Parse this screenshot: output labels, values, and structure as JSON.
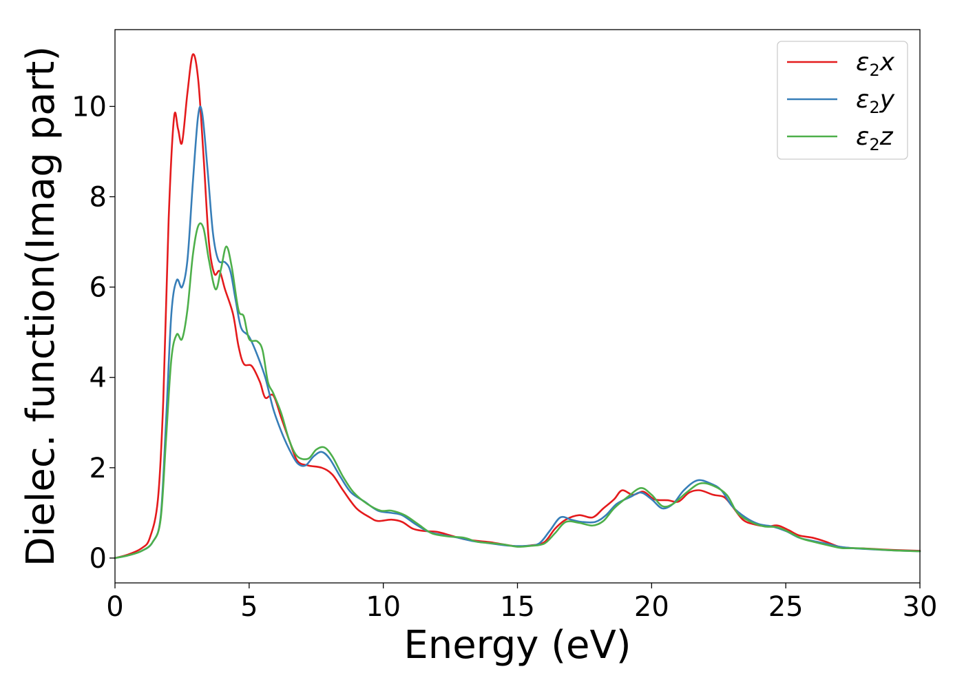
{
  "chart_data": {
    "type": "line",
    "xlabel": "Energy (eV)",
    "ylabel": "Dielec. function(Imag part)",
    "xlim": [
      0,
      30
    ],
    "ylim": [
      -0.55,
      11.7
    ],
    "xticks": [
      "0",
      "5",
      "10",
      "15",
      "20",
      "25",
      "30"
    ],
    "yticks": [
      "0",
      "2",
      "4",
      "6",
      "8",
      "10"
    ],
    "grid": false,
    "legend_position": "top-right",
    "series": [
      {
        "name": "ε2x",
        "symbol": "ε",
        "subscript": "2",
        "axis": "x",
        "color": "#e41a1c",
        "points": [
          [
            0,
            0
          ],
          [
            0.5,
            0.08
          ],
          [
            1.0,
            0.22
          ],
          [
            1.3,
            0.45
          ],
          [
            1.6,
            1.3
          ],
          [
            1.8,
            3.5
          ],
          [
            2.0,
            7.5
          ],
          [
            2.2,
            9.75
          ],
          [
            2.35,
            9.5
          ],
          [
            2.5,
            9.2
          ],
          [
            2.7,
            10.3
          ],
          [
            2.9,
            11.15
          ],
          [
            3.1,
            10.6
          ],
          [
            3.3,
            8.9
          ],
          [
            3.5,
            7.0
          ],
          [
            3.7,
            6.3
          ],
          [
            3.9,
            6.35
          ],
          [
            4.1,
            5.95
          ],
          [
            4.4,
            5.4
          ],
          [
            4.6,
            4.7
          ],
          [
            4.8,
            4.3
          ],
          [
            5.1,
            4.25
          ],
          [
            5.4,
            3.9
          ],
          [
            5.6,
            3.55
          ],
          [
            5.9,
            3.6
          ],
          [
            6.2,
            3.1
          ],
          [
            6.5,
            2.6
          ],
          [
            6.8,
            2.15
          ],
          [
            7.2,
            2.05
          ],
          [
            7.7,
            2.0
          ],
          [
            8.1,
            1.85
          ],
          [
            8.5,
            1.5
          ],
          [
            9.0,
            1.1
          ],
          [
            9.5,
            0.9
          ],
          [
            9.8,
            0.82
          ],
          [
            10.3,
            0.85
          ],
          [
            10.7,
            0.8
          ],
          [
            11.1,
            0.65
          ],
          [
            11.5,
            0.6
          ],
          [
            12.0,
            0.58
          ],
          [
            12.5,
            0.5
          ],
          [
            13.0,
            0.42
          ],
          [
            13.5,
            0.38
          ],
          [
            14.0,
            0.35
          ],
          [
            14.5,
            0.3
          ],
          [
            15.0,
            0.26
          ],
          [
            15.5,
            0.28
          ],
          [
            16.0,
            0.35
          ],
          [
            16.4,
            0.65
          ],
          [
            16.8,
            0.85
          ],
          [
            17.3,
            0.95
          ],
          [
            17.8,
            0.9
          ],
          [
            18.2,
            1.1
          ],
          [
            18.6,
            1.3
          ],
          [
            18.9,
            1.5
          ],
          [
            19.3,
            1.4
          ],
          [
            19.7,
            1.47
          ],
          [
            20.1,
            1.3
          ],
          [
            20.6,
            1.28
          ],
          [
            21.0,
            1.25
          ],
          [
            21.4,
            1.45
          ],
          [
            21.8,
            1.5
          ],
          [
            22.3,
            1.4
          ],
          [
            22.7,
            1.35
          ],
          [
            23.0,
            1.15
          ],
          [
            23.4,
            0.85
          ],
          [
            23.8,
            0.75
          ],
          [
            24.3,
            0.7
          ],
          [
            24.7,
            0.72
          ],
          [
            25.1,
            0.62
          ],
          [
            25.5,
            0.5
          ],
          [
            26.0,
            0.45
          ],
          [
            26.5,
            0.36
          ],
          [
            27.0,
            0.25
          ],
          [
            27.5,
            0.22
          ],
          [
            28.0,
            0.21
          ],
          [
            29.0,
            0.18
          ],
          [
            30.0,
            0.16
          ]
        ]
      },
      {
        "name": "ε2y",
        "symbol": "ε",
        "subscript": "2",
        "axis": "y",
        "color": "#377eb8",
        "points": [
          [
            0,
            0
          ],
          [
            0.5,
            0.06
          ],
          [
            1.0,
            0.16
          ],
          [
            1.4,
            0.35
          ],
          [
            1.7,
            0.9
          ],
          [
            1.9,
            3.0
          ],
          [
            2.1,
            5.4
          ],
          [
            2.3,
            6.15
          ],
          [
            2.5,
            6.0
          ],
          [
            2.7,
            6.6
          ],
          [
            2.9,
            8.3
          ],
          [
            3.1,
            9.8
          ],
          [
            3.25,
            9.85
          ],
          [
            3.45,
            8.6
          ],
          [
            3.65,
            7.2
          ],
          [
            3.85,
            6.6
          ],
          [
            4.1,
            6.55
          ],
          [
            4.3,
            6.35
          ],
          [
            4.5,
            5.7
          ],
          [
            4.7,
            5.1
          ],
          [
            5.0,
            4.9
          ],
          [
            5.3,
            4.5
          ],
          [
            5.6,
            4.0
          ],
          [
            5.9,
            3.3
          ],
          [
            6.2,
            2.8
          ],
          [
            6.5,
            2.4
          ],
          [
            6.8,
            2.1
          ],
          [
            7.1,
            2.05
          ],
          [
            7.4,
            2.25
          ],
          [
            7.7,
            2.35
          ],
          [
            8.0,
            2.2
          ],
          [
            8.4,
            1.8
          ],
          [
            8.8,
            1.45
          ],
          [
            9.3,
            1.25
          ],
          [
            9.8,
            1.05
          ],
          [
            10.3,
            1.0
          ],
          [
            10.7,
            0.95
          ],
          [
            11.2,
            0.75
          ],
          [
            11.7,
            0.58
          ],
          [
            12.3,
            0.5
          ],
          [
            12.8,
            0.45
          ],
          [
            13.3,
            0.38
          ],
          [
            13.8,
            0.34
          ],
          [
            14.3,
            0.3
          ],
          [
            14.8,
            0.27
          ],
          [
            15.3,
            0.27
          ],
          [
            15.8,
            0.32
          ],
          [
            16.2,
            0.6
          ],
          [
            16.6,
            0.9
          ],
          [
            17.0,
            0.85
          ],
          [
            17.4,
            0.8
          ],
          [
            17.9,
            0.8
          ],
          [
            18.3,
            0.95
          ],
          [
            18.7,
            1.2
          ],
          [
            19.2,
            1.35
          ],
          [
            19.6,
            1.45
          ],
          [
            20.0,
            1.3
          ],
          [
            20.4,
            1.1
          ],
          [
            20.8,
            1.2
          ],
          [
            21.2,
            1.5
          ],
          [
            21.7,
            1.72
          ],
          [
            22.2,
            1.65
          ],
          [
            22.6,
            1.5
          ],
          [
            23.0,
            1.15
          ],
          [
            23.5,
            0.9
          ],
          [
            24.0,
            0.75
          ],
          [
            24.5,
            0.7
          ],
          [
            25.0,
            0.6
          ],
          [
            25.5,
            0.45
          ],
          [
            26.0,
            0.38
          ],
          [
            26.5,
            0.32
          ],
          [
            27.0,
            0.25
          ],
          [
            27.5,
            0.22
          ],
          [
            28.0,
            0.2
          ],
          [
            29.0,
            0.17
          ],
          [
            30.0,
            0.15
          ]
        ]
      },
      {
        "name": "ε2z",
        "symbol": "ε",
        "subscript": "2",
        "axis": "z",
        "color": "#4daf4a",
        "points": [
          [
            0,
            0
          ],
          [
            0.5,
            0.06
          ],
          [
            1.0,
            0.16
          ],
          [
            1.4,
            0.35
          ],
          [
            1.7,
            0.85
          ],
          [
            1.9,
            2.6
          ],
          [
            2.1,
            4.4
          ],
          [
            2.3,
            4.95
          ],
          [
            2.5,
            4.85
          ],
          [
            2.7,
            5.5
          ],
          [
            2.9,
            6.7
          ],
          [
            3.1,
            7.35
          ],
          [
            3.3,
            7.3
          ],
          [
            3.5,
            6.6
          ],
          [
            3.75,
            5.95
          ],
          [
            3.95,
            6.4
          ],
          [
            4.15,
            6.9
          ],
          [
            4.35,
            6.45
          ],
          [
            4.6,
            5.5
          ],
          [
            4.8,
            5.35
          ],
          [
            5.0,
            4.85
          ],
          [
            5.3,
            4.8
          ],
          [
            5.5,
            4.6
          ],
          [
            5.7,
            3.9
          ],
          [
            5.9,
            3.65
          ],
          [
            6.2,
            3.2
          ],
          [
            6.5,
            2.6
          ],
          [
            6.8,
            2.25
          ],
          [
            7.2,
            2.2
          ],
          [
            7.5,
            2.4
          ],
          [
            7.8,
            2.45
          ],
          [
            8.1,
            2.25
          ],
          [
            8.5,
            1.8
          ],
          [
            8.9,
            1.45
          ],
          [
            9.4,
            1.2
          ],
          [
            9.9,
            1.05
          ],
          [
            10.3,
            1.05
          ],
          [
            10.8,
            0.95
          ],
          [
            11.3,
            0.75
          ],
          [
            11.8,
            0.55
          ],
          [
            12.4,
            0.48
          ],
          [
            13.0,
            0.45
          ],
          [
            13.5,
            0.36
          ],
          [
            14.0,
            0.33
          ],
          [
            14.5,
            0.3
          ],
          [
            15.0,
            0.25
          ],
          [
            15.5,
            0.27
          ],
          [
            16.0,
            0.32
          ],
          [
            16.4,
            0.55
          ],
          [
            16.8,
            0.8
          ],
          [
            17.3,
            0.78
          ],
          [
            17.8,
            0.72
          ],
          [
            18.2,
            0.82
          ],
          [
            18.6,
            1.1
          ],
          [
            19.1,
            1.35
          ],
          [
            19.6,
            1.55
          ],
          [
            20.0,
            1.4
          ],
          [
            20.4,
            1.15
          ],
          [
            20.8,
            1.2
          ],
          [
            21.3,
            1.45
          ],
          [
            21.8,
            1.65
          ],
          [
            22.3,
            1.6
          ],
          [
            22.8,
            1.4
          ],
          [
            23.2,
            1.0
          ],
          [
            23.7,
            0.8
          ],
          [
            24.2,
            0.7
          ],
          [
            24.7,
            0.68
          ],
          [
            25.2,
            0.55
          ],
          [
            25.6,
            0.43
          ],
          [
            26.1,
            0.35
          ],
          [
            26.6,
            0.28
          ],
          [
            27.1,
            0.22
          ],
          [
            27.6,
            0.22
          ],
          [
            28.2,
            0.2
          ],
          [
            29.0,
            0.17
          ],
          [
            30.0,
            0.15
          ]
        ]
      }
    ]
  }
}
